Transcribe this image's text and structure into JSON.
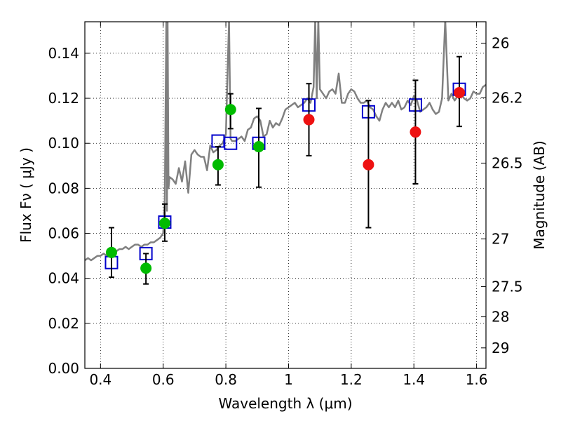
{
  "chart_data": {
    "type": "scatter",
    "xlabel": "Wavelength  λ (μm)",
    "ylabel": "Flux  Fν  ( μJy )",
    "y2label": "Magnitude (AB)",
    "xlim": [
      0.35,
      1.63
    ],
    "ylim": [
      0.0,
      0.154
    ],
    "x_ticks": [
      0.4,
      0.6,
      0.8,
      1.0,
      1.2,
      1.4,
      1.6
    ],
    "x_tick_labels": [
      "0.4",
      "0.6",
      "0.8",
      "1",
      "1.2",
      "1.4",
      "1.6"
    ],
    "y_ticks": [
      0.0,
      0.02,
      0.04,
      0.06,
      0.08,
      0.1,
      0.12,
      0.14
    ],
    "y_tick_labels": [
      "0.00",
      "0.02",
      "0.04",
      "0.06",
      "0.08",
      "0.10",
      "0.12",
      "0.14"
    ],
    "y2_ticks": [
      {
        "label": "26",
        "flux": 0.1445
      },
      {
        "label": "26.2",
        "flux": 0.1202
      },
      {
        "label": "26.5",
        "flux": 0.0912
      },
      {
        "label": "27",
        "flux": 0.0575
      },
      {
        "label": "27.5",
        "flux": 0.0363
      },
      {
        "label": "28",
        "flux": 0.0229
      },
      {
        "label": "29",
        "flux": 0.0091
      }
    ],
    "grid": true,
    "colors": {
      "model": "#808080",
      "model_flux": "#0000cc",
      "optical_obs": "#00bb00",
      "nir_obs": "#ee1111",
      "errorbar": "#000000"
    },
    "model_spectrum": {
      "x": [
        0.35,
        0.36,
        0.37,
        0.38,
        0.39,
        0.4,
        0.41,
        0.42,
        0.43,
        0.44,
        0.45,
        0.46,
        0.47,
        0.48,
        0.49,
        0.5,
        0.51,
        0.52,
        0.53,
        0.54,
        0.55,
        0.56,
        0.57,
        0.58,
        0.59,
        0.6,
        0.605,
        0.61,
        0.612,
        0.614,
        0.617,
        0.62,
        0.63,
        0.64,
        0.65,
        0.66,
        0.67,
        0.68,
        0.69,
        0.7,
        0.71,
        0.72,
        0.73,
        0.74,
        0.75,
        0.76,
        0.77,
        0.78,
        0.79,
        0.8,
        0.81,
        0.815,
        0.82,
        0.83,
        0.84,
        0.85,
        0.86,
        0.87,
        0.88,
        0.89,
        0.9,
        0.91,
        0.92,
        0.93,
        0.94,
        0.95,
        0.96,
        0.97,
        0.98,
        0.99,
        1.0,
        1.01,
        1.02,
        1.03,
        1.04,
        1.05,
        1.06,
        1.07,
        1.08,
        1.085,
        1.09,
        1.095,
        1.1,
        1.11,
        1.12,
        1.13,
        1.14,
        1.15,
        1.16,
        1.17,
        1.18,
        1.19,
        1.2,
        1.21,
        1.22,
        1.23,
        1.24,
        1.25,
        1.26,
        1.27,
        1.28,
        1.29,
        1.3,
        1.31,
        1.32,
        1.33,
        1.34,
        1.35,
        1.36,
        1.37,
        1.38,
        1.39,
        1.4,
        1.41,
        1.42,
        1.43,
        1.44,
        1.45,
        1.46,
        1.47,
        1.48,
        1.49,
        1.5,
        1.51,
        1.52,
        1.53,
        1.54,
        1.55,
        1.56,
        1.57,
        1.58,
        1.59,
        1.6,
        1.61,
        1.62,
        1.63
      ],
      "y": [
        0.048,
        0.049,
        0.048,
        0.049,
        0.05,
        0.05,
        0.051,
        0.05,
        0.052,
        0.053,
        0.052,
        0.053,
        0.053,
        0.054,
        0.053,
        0.054,
        0.055,
        0.055,
        0.054,
        0.055,
        0.055,
        0.056,
        0.056,
        0.057,
        0.058,
        0.06,
        0.075,
        0.155,
        0.07,
        0.155,
        0.08,
        0.085,
        0.084,
        0.082,
        0.089,
        0.083,
        0.092,
        0.078,
        0.095,
        0.097,
        0.095,
        0.094,
        0.094,
        0.088,
        0.099,
        0.096,
        0.097,
        0.099,
        0.1,
        0.104,
        0.155,
        0.102,
        0.101,
        0.101,
        0.102,
        0.103,
        0.101,
        0.106,
        0.107,
        0.111,
        0.112,
        0.11,
        0.103,
        0.104,
        0.11,
        0.107,
        0.109,
        0.108,
        0.111,
        0.115,
        0.116,
        0.117,
        0.118,
        0.116,
        0.117,
        0.118,
        0.12,
        0.118,
        0.125,
        0.155,
        0.12,
        0.155,
        0.124,
        0.122,
        0.12,
        0.123,
        0.124,
        0.122,
        0.131,
        0.118,
        0.118,
        0.122,
        0.124,
        0.123,
        0.12,
        0.118,
        0.118,
        0.119,
        0.116,
        0.115,
        0.112,
        0.11,
        0.115,
        0.118,
        0.116,
        0.118,
        0.116,
        0.119,
        0.115,
        0.116,
        0.119,
        0.117,
        0.121,
        0.119,
        0.114,
        0.115,
        0.116,
        0.118,
        0.115,
        0.113,
        0.114,
        0.12,
        0.155,
        0.119,
        0.122,
        0.119,
        0.121,
        0.122,
        0.12,
        0.119,
        0.12,
        0.123,
        0.122,
        0.122,
        0.125,
        0.126
      ]
    },
    "model_flux": {
      "x": [
        0.435,
        0.545,
        0.605,
        0.775,
        0.815,
        0.905,
        1.065,
        1.255,
        1.405,
        1.545
      ],
      "y": [
        0.047,
        0.051,
        0.065,
        0.101,
        0.1,
        0.1,
        0.117,
        0.114,
        0.117,
        0.124
      ]
    },
    "observed_optical": {
      "x": [
        0.435,
        0.545,
        0.605,
        0.775,
        0.815,
        0.905
      ],
      "y": [
        0.0515,
        0.0445,
        0.0645,
        0.0905,
        0.115,
        0.0985
      ],
      "err_low": [
        0.0405,
        0.0375,
        0.0565,
        0.0815,
        0.1065,
        0.0805
      ],
      "err_high": [
        0.0625,
        0.051,
        0.073,
        0.0985,
        0.122,
        0.1155
      ]
    },
    "observed_nir": {
      "x": [
        1.065,
        1.255,
        1.405,
        1.545
      ],
      "y": [
        0.1105,
        0.0905,
        0.105,
        0.1225
      ],
      "err_low": [
        0.0945,
        0.0625,
        0.082,
        0.1075
      ],
      "err_high": [
        0.1265,
        0.119,
        0.128,
        0.1385
      ]
    }
  }
}
